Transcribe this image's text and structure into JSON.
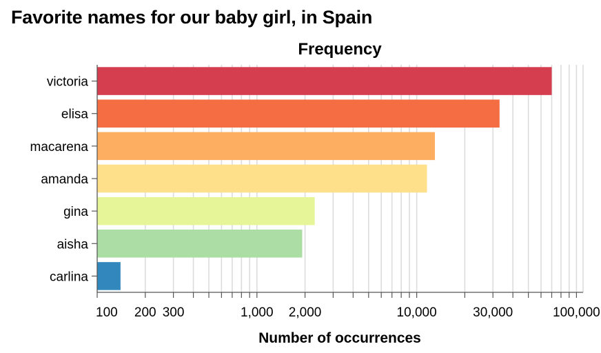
{
  "chart_data": {
    "type": "bar",
    "orientation": "horizontal",
    "title": "Favorite names for our baby girl, in Spain",
    "subtitle": "Frequency",
    "xlabel": "Number of occurrences",
    "ylabel": "",
    "x_scale": "log",
    "xlim": [
      100,
      110000
    ],
    "x_ticks": [
      100,
      200,
      300,
      1000,
      2000,
      10000,
      30000,
      100000
    ],
    "x_tick_labels": [
      "100",
      "200",
      "300",
      "1,000",
      "2,000",
      "10,000",
      "30,000",
      "100,000"
    ],
    "grid": true,
    "legend": "none",
    "categories": [
      "victoria",
      "elisa",
      "macarena",
      "amanda",
      "gina",
      "aisha",
      "carlina"
    ],
    "values": [
      70000,
      33000,
      13000,
      11600,
      2300,
      1920,
      140
    ],
    "colors": [
      "#d53e4f",
      "#f46d43",
      "#fdae61",
      "#fee08b",
      "#e6f598",
      "#abdda4",
      "#3288bd"
    ]
  }
}
